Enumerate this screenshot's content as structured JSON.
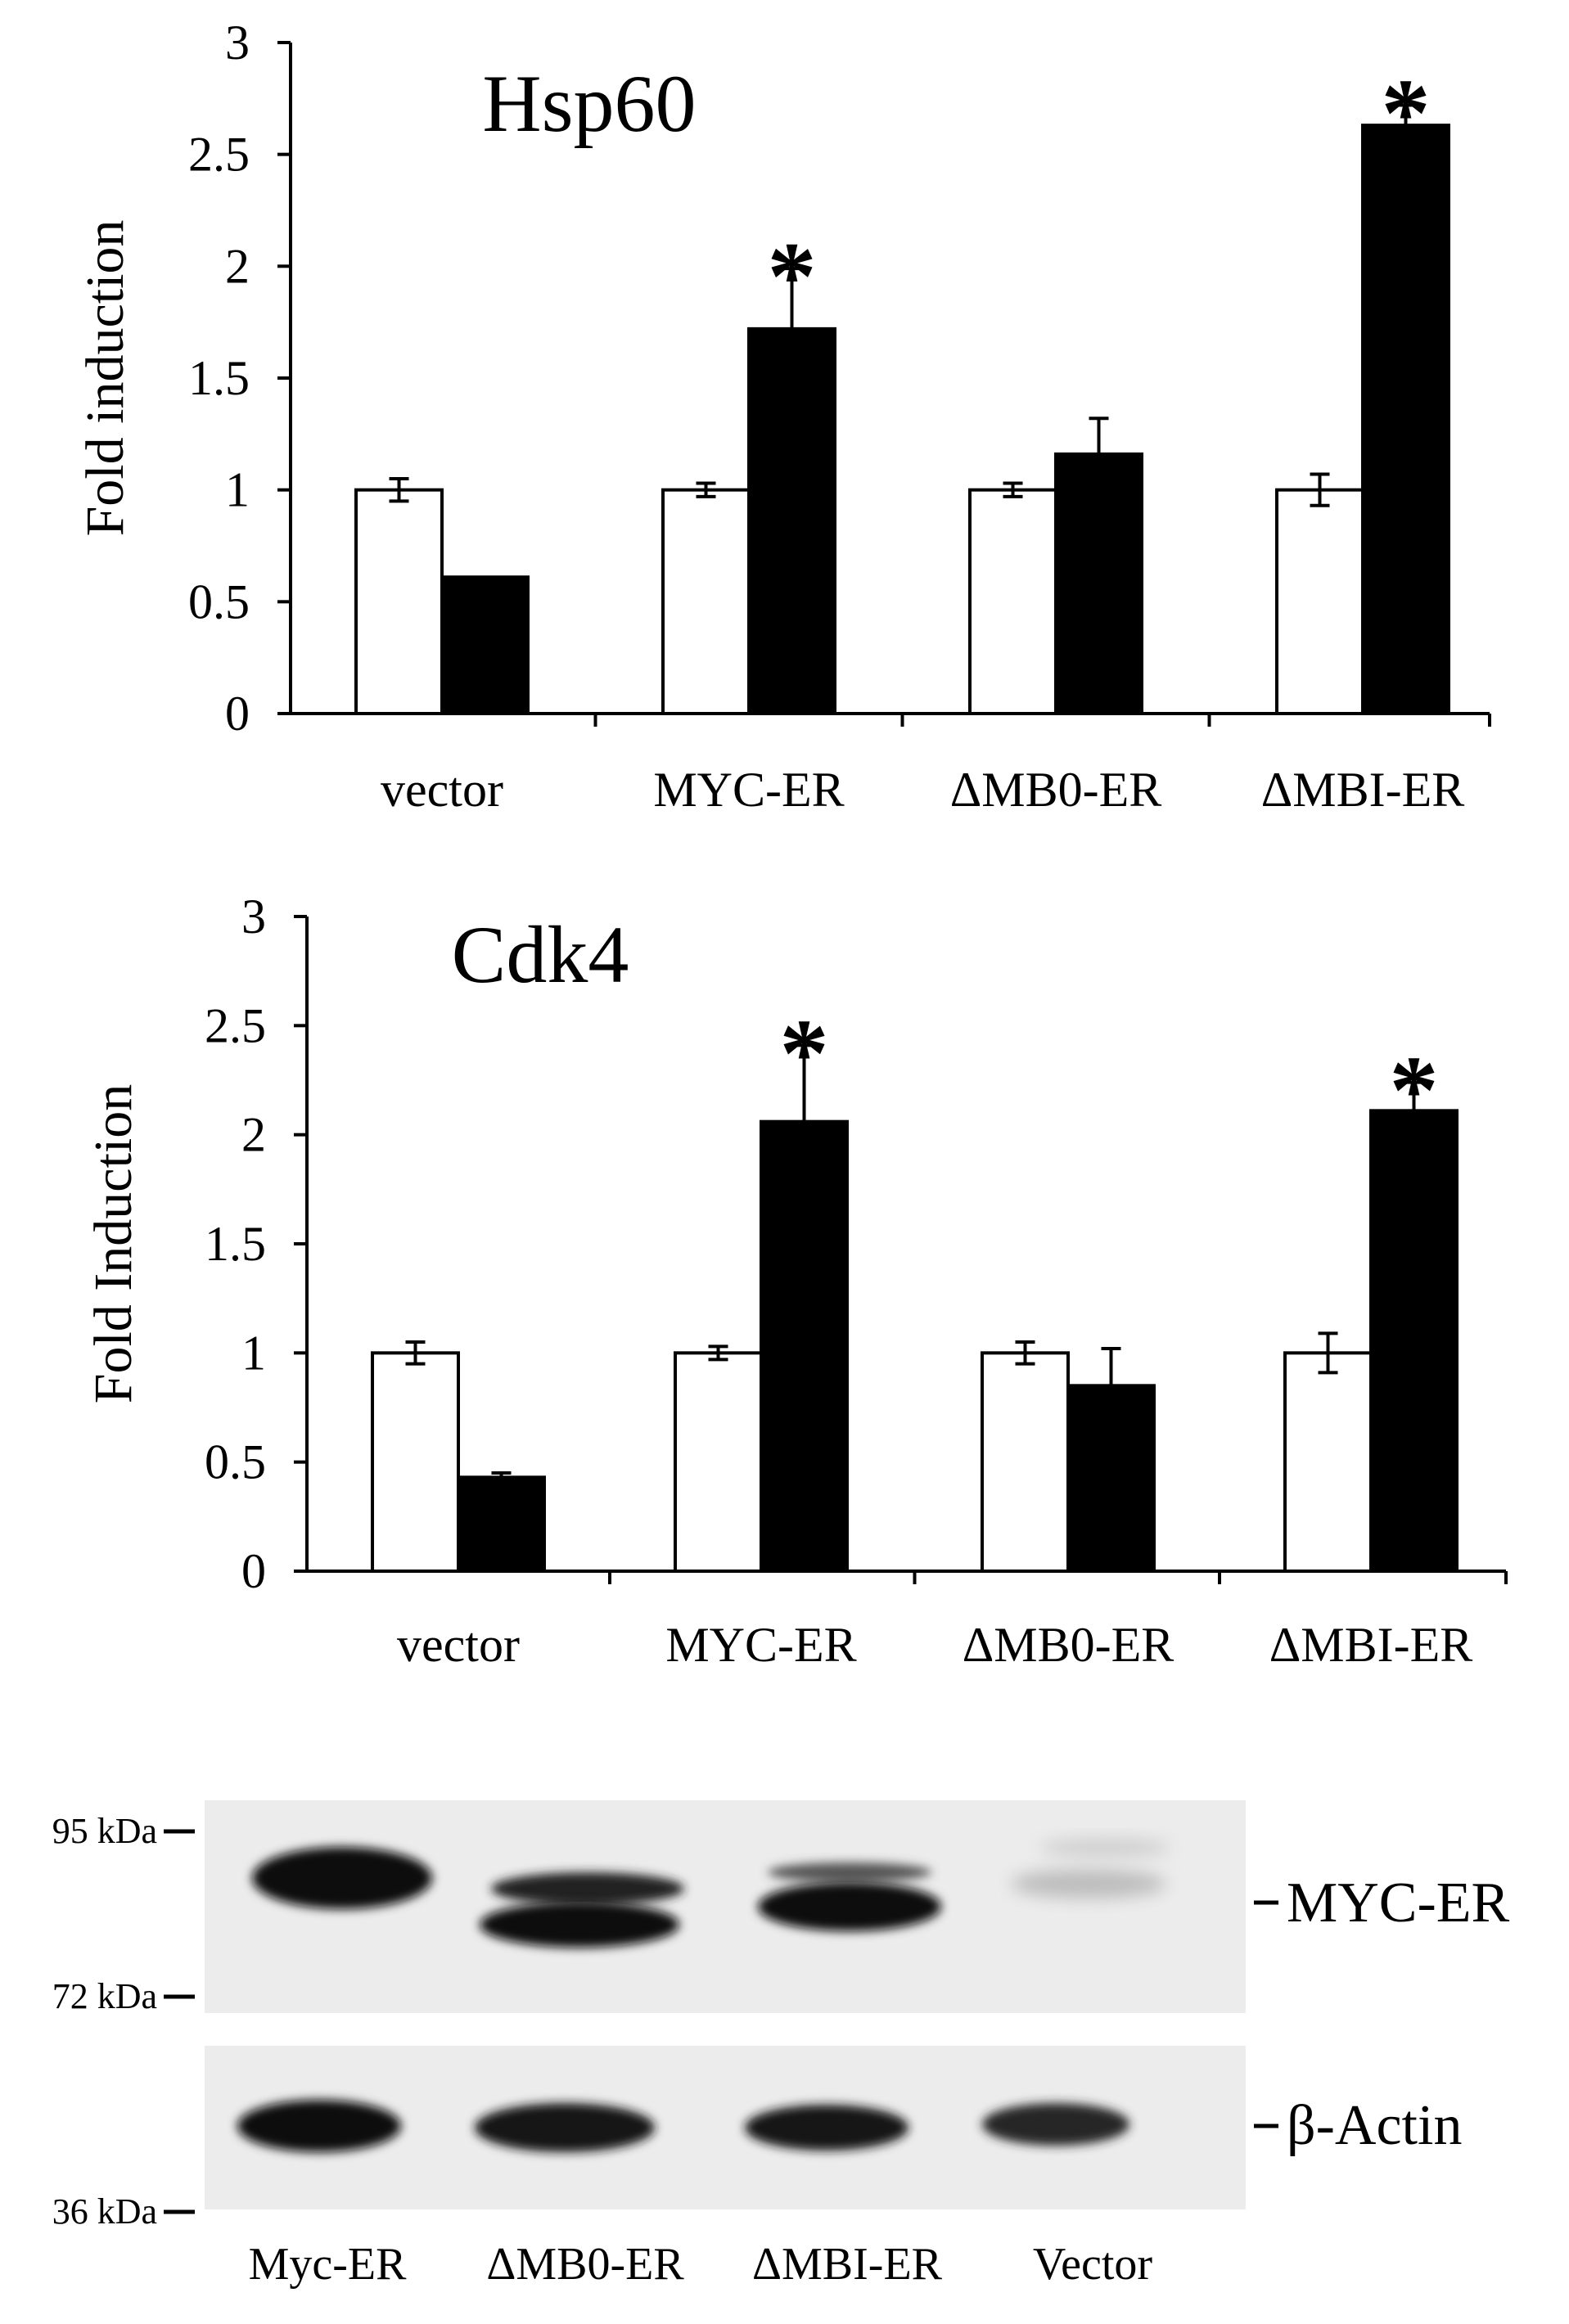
{
  "chart_data": [
    {
      "type": "bar",
      "title": "Hsp60",
      "ylabel": "Fold induction",
      "xlabel": "",
      "ylim": [
        0,
        3
      ],
      "yticks": [
        "0",
        "0.5",
        "1",
        "1.5",
        "2",
        "2.5",
        "3"
      ],
      "categories": [
        "vector",
        "MYC-ER",
        "ΔMB0-ER",
        "ΔMBI-ER"
      ],
      "series": [
        {
          "fill": "#ffffff",
          "values": [
            1.0,
            1.0,
            1.0,
            1.0
          ],
          "errors": [
            0.05,
            0.03,
            0.03,
            0.07
          ]
        },
        {
          "fill": "#000000",
          "values": [
            0.61,
            1.72,
            1.16,
            2.63
          ],
          "errors": [
            0.0,
            0.27,
            0.16,
            0.09
          ]
        }
      ],
      "significance": [
        "",
        "*",
        "",
        "*"
      ],
      "grid": false
    },
    {
      "type": "bar",
      "title": "Cdk4",
      "ylabel": "Fold Induction",
      "xlabel": "",
      "ylim": [
        0,
        3
      ],
      "yticks": [
        "0",
        "0.5",
        "1",
        "1.5",
        "2",
        "2.5",
        "3"
      ],
      "categories": [
        "vector",
        "MYC-ER",
        "ΔMB0-ER",
        "ΔMBI-ER"
      ],
      "series": [
        {
          "fill": "#ffffff",
          "values": [
            1.0,
            1.0,
            1.0,
            1.0
          ],
          "errors": [
            0.05,
            0.03,
            0.05,
            0.09
          ]
        },
        {
          "fill": "#000000",
          "values": [
            0.43,
            2.06,
            0.85,
            2.11
          ],
          "errors": [
            0.02,
            0.35,
            0.17,
            0.13
          ]
        }
      ],
      "significance": [
        "",
        "*",
        "",
        "*"
      ],
      "grid": false
    }
  ],
  "blot": {
    "mw_markers": [
      "95 kDa",
      "72 kDa",
      "36 kDa"
    ],
    "band_labels": [
      "MYC-ER",
      "β-Actin"
    ],
    "lane_labels": [
      "Myc-ER",
      "ΔMB0-ER",
      "ΔMBI-ER",
      "Vector"
    ]
  }
}
